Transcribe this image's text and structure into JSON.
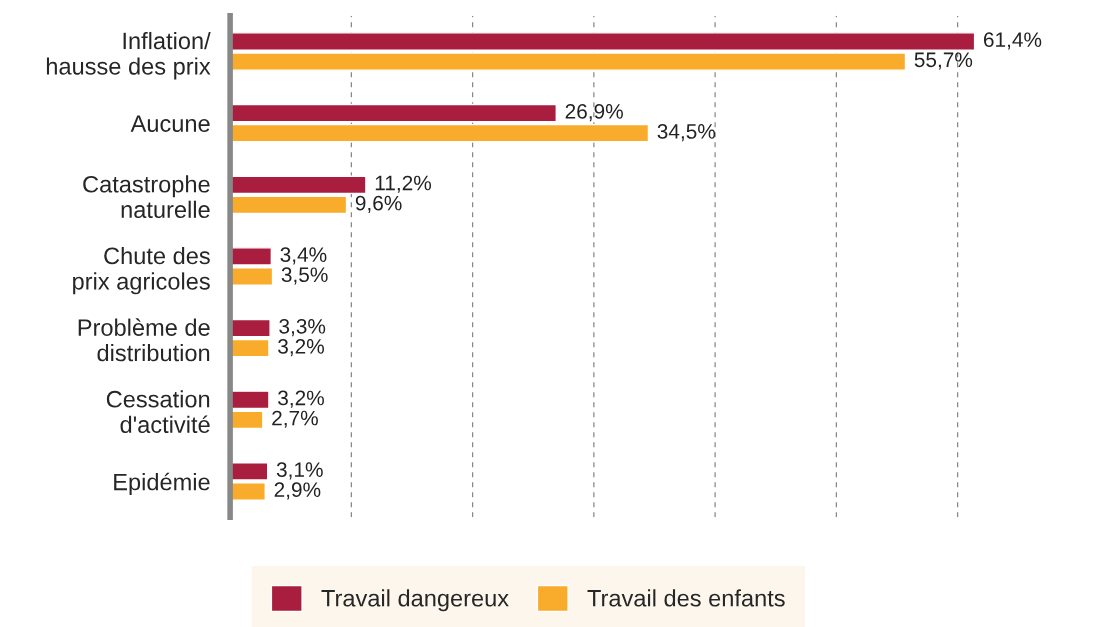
{
  "chart_data": {
    "type": "bar",
    "orientation": "horizontal",
    "categories": [
      "Inflation/\nhausse des prix",
      "Aucune",
      "Catastrophe\nnaturelle",
      "Chute des\nprix agricoles",
      "Problème de\ndistribution",
      "Cessation\nd'activité",
      "Epidémie"
    ],
    "series": [
      {
        "name": "Travail dangereux",
        "color": "#a91d3e",
        "values": [
          61.4,
          26.9,
          11.2,
          3.4,
          3.3,
          3.2,
          3.1
        ],
        "value_labels": [
          "61,4%",
          "26,9%",
          "11,2%",
          "3,4%",
          "3,3%",
          "3,2%",
          "3,1%"
        ]
      },
      {
        "name": "Travail des enfants",
        "color": "#f9ab2b",
        "values": [
          55.7,
          34.5,
          9.6,
          3.5,
          3.2,
          2.7,
          2.9
        ],
        "value_labels": [
          "55,7%",
          "34,5%",
          "9,6%",
          "3,5%",
          "3,2%",
          "2,7%",
          "2,9%"
        ]
      }
    ],
    "xticks": [
      {
        "value": 10,
        "label": null
      },
      {
        "value": 20,
        "label": null
      },
      {
        "value": 30,
        "label": null
      },
      {
        "value": 40,
        "label": null
      },
      {
        "value": 50,
        "label": null
      },
      {
        "value": 60,
        "label": null
      }
    ],
    "tick_labels": "y",
    "grid": "x",
    "legend": "bottom"
  }
}
